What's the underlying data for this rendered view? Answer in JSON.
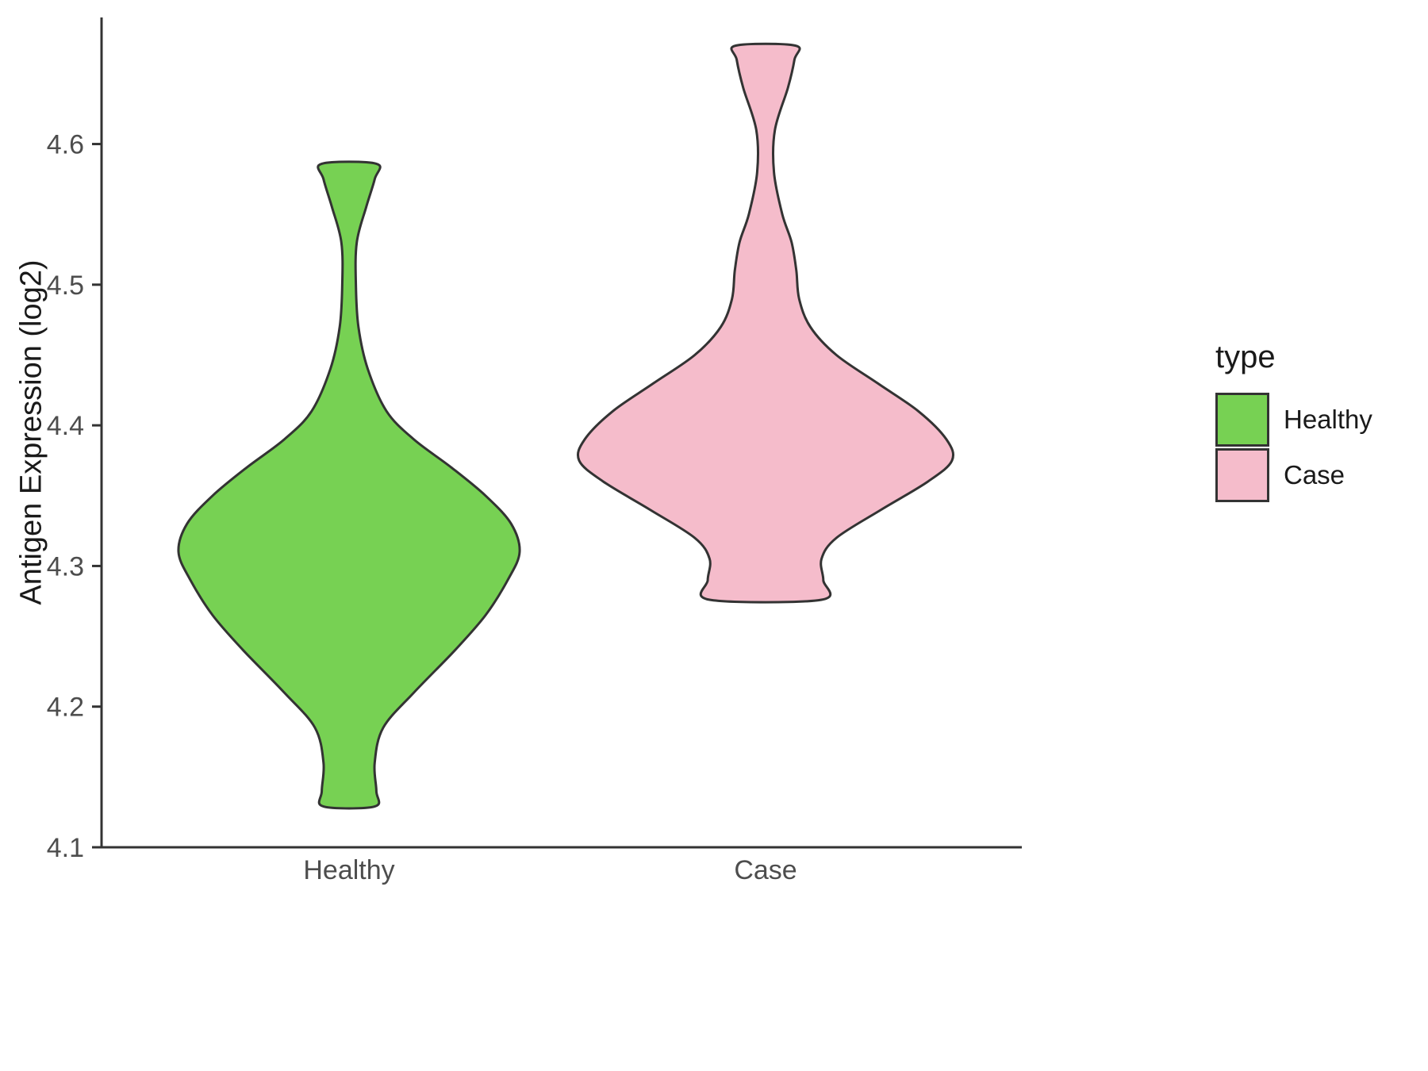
{
  "chart_data": {
    "type": "violin",
    "title": "",
    "xlabel": "",
    "ylabel": "Antigen Expression (log2)",
    "categories": [
      "Healthy",
      "Case"
    ],
    "ylim": [
      4.1,
      4.69
    ],
    "ytick_values": [
      4.1,
      4.2,
      4.3,
      4.4,
      4.5,
      4.6
    ],
    "ytick_labels": [
      "4.1",
      "4.2",
      "4.3",
      "4.4",
      "4.5",
      "4.6"
    ],
    "grid": false,
    "background": "#ffffff",
    "axis_color": "#333333",
    "tick_label_color": "#4d4d4d",
    "legend": {
      "title": "type",
      "position": "right",
      "entries": [
        {
          "label": "Healthy",
          "color": "#77d153"
        },
        {
          "label": "Case",
          "color": "#f5bccb"
        }
      ]
    },
    "series": [
      {
        "name": "Healthy",
        "fill": "#77d153",
        "stroke": "#333333",
        "max_halfwidth": 215,
        "value_range": [
          4.129,
          4.586
        ],
        "profile": [
          [
            4.129,
            0.15
          ],
          [
            4.14,
            0.16
          ],
          [
            4.16,
            0.15
          ],
          [
            4.185,
            0.2
          ],
          [
            4.21,
            0.38
          ],
          [
            4.24,
            0.62
          ],
          [
            4.265,
            0.8
          ],
          [
            4.29,
            0.93
          ],
          [
            4.31,
            1.0
          ],
          [
            4.33,
            0.95
          ],
          [
            4.35,
            0.8
          ],
          [
            4.37,
            0.6
          ],
          [
            4.39,
            0.38
          ],
          [
            4.41,
            0.22
          ],
          [
            4.44,
            0.11
          ],
          [
            4.47,
            0.055
          ],
          [
            4.5,
            0.04
          ],
          [
            4.53,
            0.045
          ],
          [
            4.555,
            0.1
          ],
          [
            4.575,
            0.15
          ],
          [
            4.586,
            0.16
          ]
        ]
      },
      {
        "name": "Case",
        "fill": "#f5bccb",
        "stroke": "#333333",
        "max_halfwidth": 235,
        "value_range": [
          4.276,
          4.67
        ],
        "profile": [
          [
            4.276,
            0.3
          ],
          [
            4.29,
            0.31
          ],
          [
            4.305,
            0.3
          ],
          [
            4.32,
            0.38
          ],
          [
            4.34,
            0.62
          ],
          [
            4.36,
            0.87
          ],
          [
            4.375,
            1.0
          ],
          [
            4.39,
            0.97
          ],
          [
            4.41,
            0.82
          ],
          [
            4.43,
            0.6
          ],
          [
            4.45,
            0.38
          ],
          [
            4.47,
            0.24
          ],
          [
            4.49,
            0.18
          ],
          [
            4.51,
            0.165
          ],
          [
            4.53,
            0.14
          ],
          [
            4.55,
            0.09
          ],
          [
            4.58,
            0.045
          ],
          [
            4.61,
            0.05
          ],
          [
            4.64,
            0.12
          ],
          [
            4.66,
            0.155
          ],
          [
            4.67,
            0.16
          ]
        ]
      }
    ]
  }
}
